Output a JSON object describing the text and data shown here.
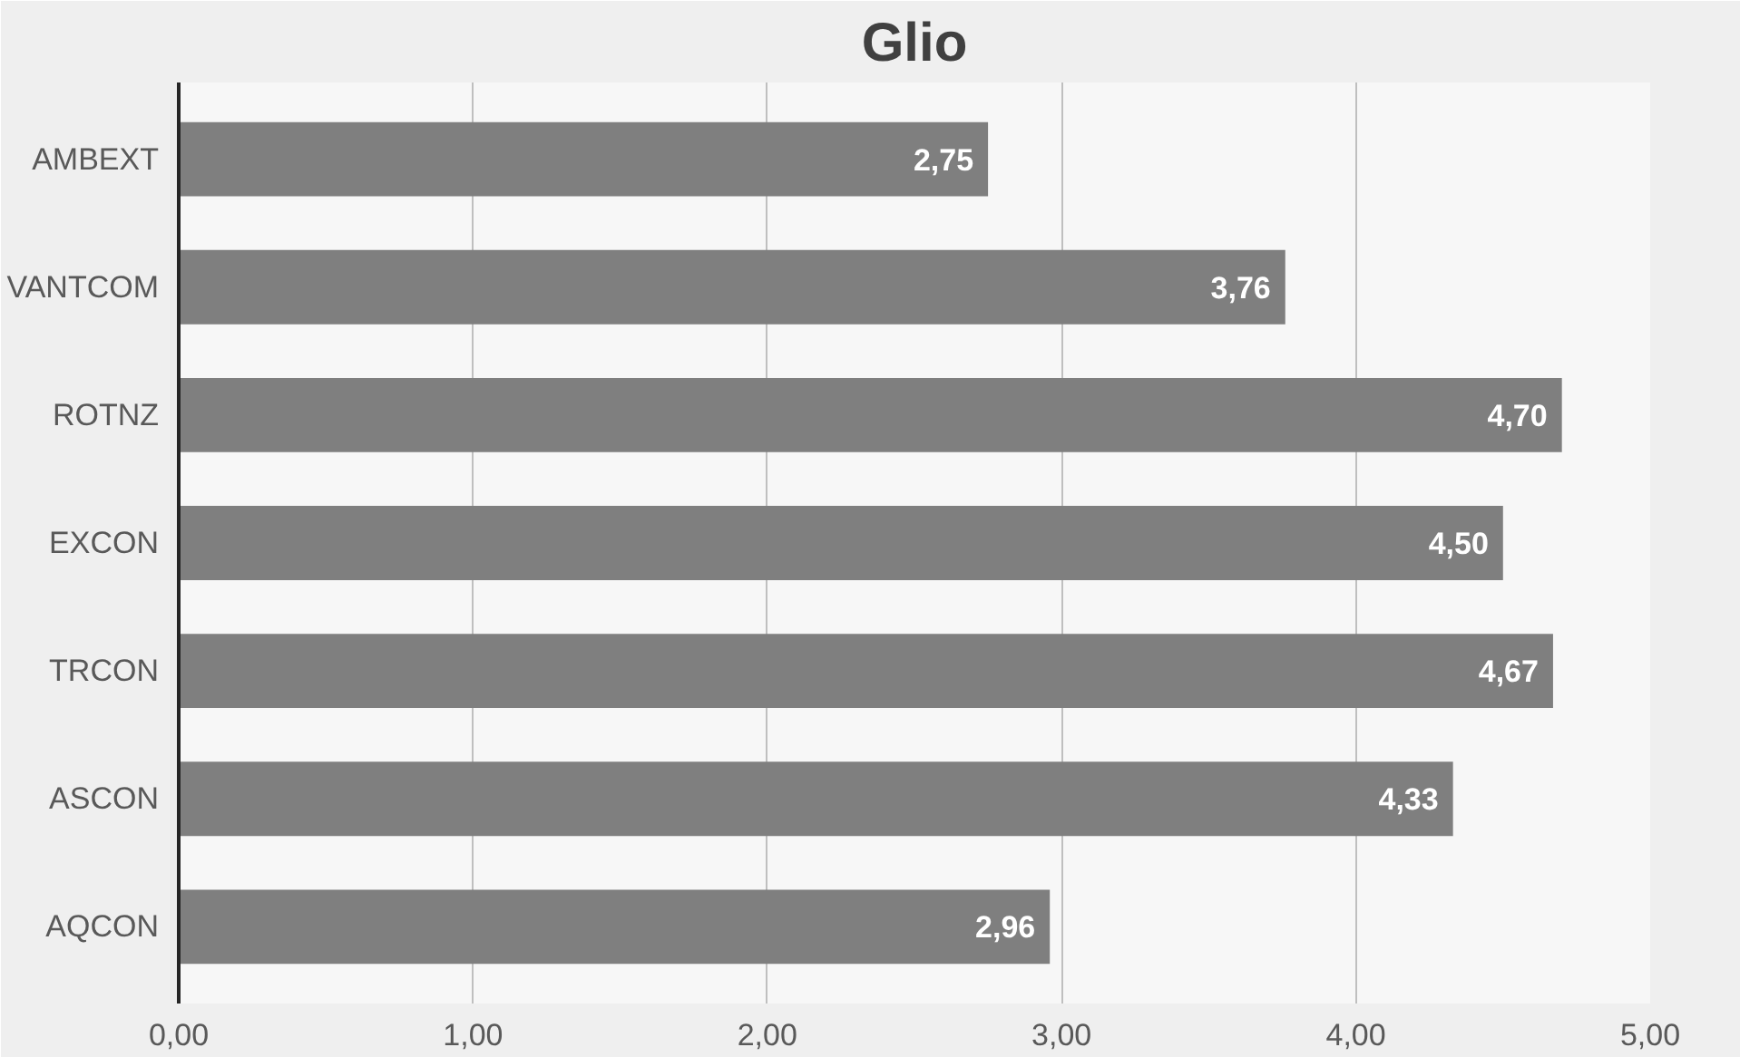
{
  "chart_data": {
    "type": "bar",
    "orientation": "horizontal",
    "title": "Glio",
    "categories": [
      "AMBEXT",
      "VANTCOM",
      "ROTNZ",
      "EXCON",
      "TRCON",
      "ASCON",
      "AQCON"
    ],
    "values": [
      2.75,
      3.76,
      4.7,
      4.5,
      4.67,
      4.33,
      2.96
    ],
    "value_labels": [
      "2,75",
      "3,76",
      "4,70",
      "4,50",
      "4,67",
      "4,33",
      "2,96"
    ],
    "color": "#7f7f7f",
    "xlim": [
      0,
      5
    ],
    "xticks": [
      {
        "value": 0,
        "label": "0,00"
      },
      {
        "value": 1,
        "label": "1,00"
      },
      {
        "value": 2,
        "label": "2,00"
      },
      {
        "value": 3,
        "label": "3,00"
      },
      {
        "value": 4,
        "label": "4,00"
      },
      {
        "value": 5,
        "label": "5,00"
      }
    ],
    "grid": "x"
  }
}
